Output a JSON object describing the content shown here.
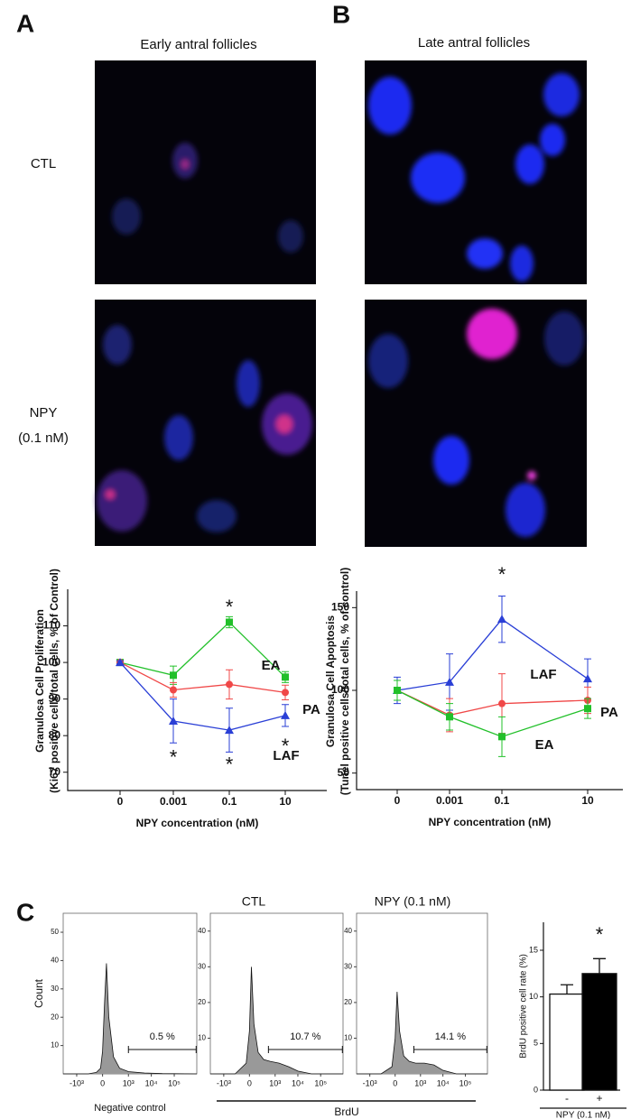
{
  "figure": {
    "panel_labels": [
      "A",
      "B",
      "C"
    ],
    "image_titles": [
      "Early antral follicles",
      "Late antral follicles"
    ],
    "row_labels": [
      [
        "CTL"
      ],
      [
        "NPY",
        "(0.1 nM)"
      ]
    ],
    "flow_axis_label": "BrdU"
  },
  "chart_data": [
    {
      "type": "line",
      "ylabel": [
        "Granulosa Cell Proliferation",
        "(Ki67 positive cells/total cells, % of Control)"
      ],
      "xlabel": "NPY concentration (nM)",
      "categories": [
        "0",
        "0.001",
        "0.1",
        "10"
      ],
      "ylim": [
        65,
        120
      ],
      "yticks": [
        70,
        80,
        90,
        100,
        110
      ],
      "series": [
        {
          "name": "EA",
          "color": "#22c02a",
          "marker": "square",
          "values": [
            100,
            96.5,
            111,
            96
          ],
          "errors": [
            0.5,
            2.5,
            1.5,
            1.5
          ]
        },
        {
          "name": "PA",
          "color": "#f04848",
          "marker": "circle",
          "values": [
            100,
            92.5,
            94,
            91.8
          ],
          "errors": [
            0.5,
            2,
            4,
            2
          ]
        },
        {
          "name": "LAF",
          "color": "#2a3fd6",
          "marker": "triangle",
          "values": [
            100,
            84,
            81.5,
            85.5
          ],
          "errors": [
            0.5,
            6,
            6,
            3
          ]
        }
      ],
      "annotations": [
        {
          "text": "*",
          "category": "0.001",
          "y": 75
        },
        {
          "text": "*",
          "category": "0.1",
          "y": 116
        },
        {
          "text": "*",
          "category": "0.1",
          "y": 73
        },
        {
          "text": "*",
          "category": "10",
          "y": 78
        }
      ]
    },
    {
      "type": "line",
      "ylabel": [
        "Granulosa Cell Apoptosis",
        "(Tunel positive cells/total cells, % of control)"
      ],
      "xlabel": "NPY concentration (nM)",
      "categories": [
        "0",
        "0.001",
        "0.1",
        "10"
      ],
      "ylim": [
        40,
        160
      ],
      "yticks": [
        50,
        100,
        150
      ],
      "series": [
        {
          "name": "LAF",
          "color": "#2a3fd6",
          "marker": "triangle",
          "values": [
            100,
            105,
            143,
            107
          ],
          "errors": [
            8,
            17,
            14,
            12
          ]
        },
        {
          "name": "PA",
          "color": "#f04848",
          "marker": "circle",
          "values": [
            100,
            85,
            92,
            94
          ],
          "errors": [
            6,
            10,
            18,
            8
          ]
        },
        {
          "name": "EA",
          "color": "#22c02a",
          "marker": "square",
          "values": [
            100,
            84,
            72,
            89
          ],
          "errors": [
            6,
            8,
            12,
            6
          ]
        }
      ],
      "annotations": [
        {
          "text": "*",
          "category": "0.1",
          "y": 172
        }
      ]
    },
    {
      "type": "density",
      "ylabel": "Count",
      "xlabel": "Negative control",
      "color": "#999999",
      "xlim": [
        -3900,
        960000
      ],
      "xticks": [
        {
          "value": -1000,
          "label": "-10³"
        },
        0,
        {
          "value": 1000,
          "label": "10³"
        },
        {
          "value": 10000,
          "label": "10⁴"
        },
        {
          "value": 100000,
          "label": "10⁵"
        }
      ],
      "ylim": [
        0,
        56.7
      ],
      "yticks": [
        10,
        20,
        30,
        40,
        50
      ],
      "x": [
        -3900,
        -300,
        -100,
        -30,
        0,
        30,
        60,
        100,
        200,
        400,
        1000,
        5000,
        30000,
        960000
      ],
      "values": [
        0,
        0,
        0.5,
        2,
        8,
        25,
        39,
        20,
        6,
        2,
        0.8,
        0.3,
        0.1,
        0
      ],
      "gate": [
        1000,
        900000
      ],
      "gate_label": "0.5 %"
    },
    {
      "type": "density",
      "title": "CTL",
      "color": "#999999",
      "xlim": [
        -3900,
        960000
      ],
      "xticks": [
        {
          "value": -1000,
          "label": "-10³"
        },
        0,
        {
          "value": 1000,
          "label": "10³"
        },
        {
          "value": 10000,
          "label": "10⁴"
        },
        {
          "value": 100000,
          "label": "10⁵"
        }
      ],
      "ylim": [
        0,
        45
      ],
      "yticks": [
        10,
        20,
        30,
        40
      ],
      "x": [
        -3900,
        -300,
        -50,
        0,
        30,
        70,
        150,
        300,
        600,
        1500,
        4000,
        10000,
        40000,
        960000
      ],
      "values": [
        0,
        0,
        3,
        12,
        30,
        14,
        6,
        4,
        3.5,
        3,
        2,
        0.8,
        0,
        0
      ],
      "gate": [
        500,
        900000
      ],
      "gate_label": "10.7 %"
    },
    {
      "type": "density",
      "title": "NPY (0.1 nM)",
      "color": "#999999",
      "xlim": [
        -3900,
        960000
      ],
      "xticks": [
        {
          "value": -1000,
          "label": "-10³"
        },
        0,
        {
          "value": 1000,
          "label": "10³"
        },
        {
          "value": 10000,
          "label": "10⁴"
        },
        {
          "value": 100000,
          "label": "10⁵"
        }
      ],
      "ylim": [
        0,
        45
      ],
      "yticks": [
        10,
        20,
        30,
        40
      ],
      "x": [
        -3900,
        -300,
        -50,
        0,
        30,
        70,
        150,
        300,
        600,
        1500,
        4000,
        10000,
        40000,
        960000
      ],
      "values": [
        0,
        0,
        2,
        10,
        23,
        12,
        5,
        3.5,
        3,
        3,
        2.5,
        1,
        0,
        0
      ],
      "gate": [
        500,
        900000
      ],
      "gate_label": "14.1 %"
    },
    {
      "type": "bar",
      "ylabel": "BrdU positive cell rate (%)",
      "xlabel": "NPY (0.1 nM)",
      "categories": [
        "-",
        "+"
      ],
      "values": [
        10.3,
        12.5
      ],
      "errors": [
        1,
        1.6
      ],
      "colors": [
        "#ffffff",
        "#000000"
      ],
      "ylim": [
        0,
        18
      ],
      "yticks": [
        0,
        5,
        10,
        15
      ],
      "annotations": [
        {
          "text": "*",
          "category": "+",
          "y": 17
        }
      ]
    }
  ]
}
